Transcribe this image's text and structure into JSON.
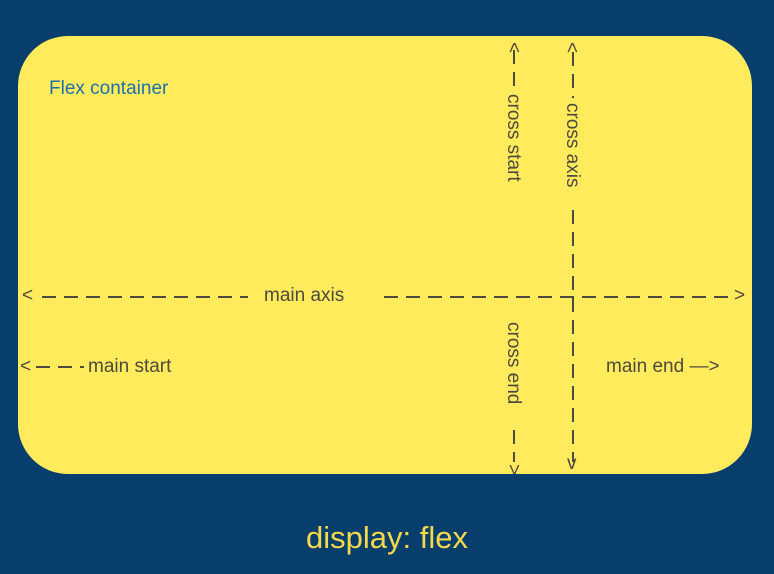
{
  "container": {
    "title": "Flex container",
    "labels": {
      "main_axis": "main axis",
      "main_start": "main start",
      "main_end": "main end —>",
      "cross_start": "cross start",
      "cross_end": "cross end",
      "cross_axis": "cross axis"
    },
    "arrows": {
      "left": "<",
      "right": ">",
      "up": "^",
      "down": "v"
    }
  },
  "caption": "display: flex",
  "colors": {
    "background": "#073e6c",
    "container": "#ffeb5c",
    "title": "#1e6fae",
    "label": "#4d4a3f",
    "caption": "#f6d94a"
  }
}
